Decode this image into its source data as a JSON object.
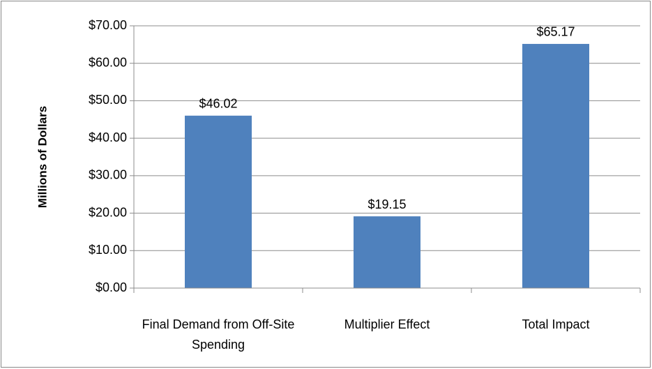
{
  "chart_data": {
    "type": "bar",
    "y_label": "Millions of Dollars",
    "categories": [
      "Final Demand from Off-Site Spending",
      "Multiplier Effect",
      "Total Impact"
    ],
    "values": [
      46.02,
      19.15,
      65.17
    ],
    "value_labels": [
      "$46.02",
      "$19.15",
      "$65.17"
    ],
    "color": "#4f81bd",
    "ylim": [
      0,
      70
    ],
    "yticks": [
      {
        "value": 0,
        "label": "$0.00"
      },
      {
        "value": 10,
        "label": "$10.00"
      },
      {
        "value": 20,
        "label": "$20.00"
      },
      {
        "value": 30,
        "label": "$30.00"
      },
      {
        "value": 40,
        "label": "$40.00"
      },
      {
        "value": 50,
        "label": "$50.00"
      },
      {
        "value": 60,
        "label": "$60.00"
      },
      {
        "value": 70,
        "label": "$70.00"
      }
    ],
    "grid": true
  }
}
